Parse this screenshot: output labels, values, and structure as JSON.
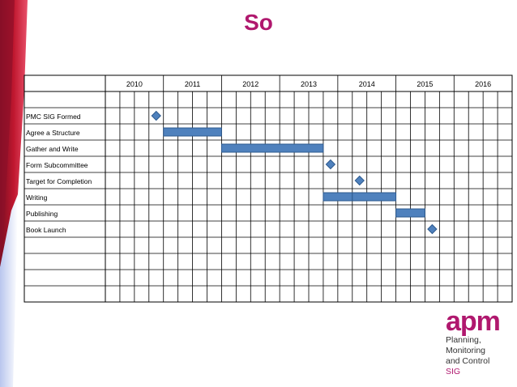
{
  "slide": {
    "title": "So"
  },
  "gantt": {
    "years": [
      "2010",
      "2011",
      "2012",
      "2013",
      "2014",
      "2015",
      "2016"
    ],
    "tasks": [
      {
        "label": "PMC SIG Formed",
        "type": "milestone",
        "at": 3.5
      },
      {
        "label": "Agree a Structure",
        "type": "bar",
        "segments": [
          [
            4,
            8
          ]
        ]
      },
      {
        "label": "Gather and Write",
        "type": "bar",
        "segments": [
          [
            8,
            15
          ]
        ]
      },
      {
        "label": "Form Subcommittee",
        "type": "milestone",
        "at": 15.5
      },
      {
        "label": "Target for Completion",
        "type": "milestone",
        "at": 17.5
      },
      {
        "label": "Writing",
        "type": "bar",
        "segments": [
          [
            15,
            17
          ],
          [
            17,
            20
          ]
        ]
      },
      {
        "label": "Publishing",
        "type": "bar",
        "segments": [
          [
            20,
            22
          ]
        ]
      },
      {
        "label": "Book Launch",
        "type": "milestone",
        "at": 22.5
      },
      {
        "label": "",
        "type": "empty"
      },
      {
        "label": "",
        "type": "empty"
      },
      {
        "label": "",
        "type": "empty"
      },
      {
        "label": "",
        "type": "empty"
      }
    ],
    "columns_per_year": 4,
    "colors": {
      "bar": "#4f81bd",
      "bar_stroke": "#2e5a8e",
      "grid": "#000000"
    }
  },
  "logo": {
    "mark": "apm",
    "lines": [
      "Planning,",
      "Monitoring",
      "and Control"
    ],
    "accent_line": "SIG",
    "color": "#b0186e"
  }
}
